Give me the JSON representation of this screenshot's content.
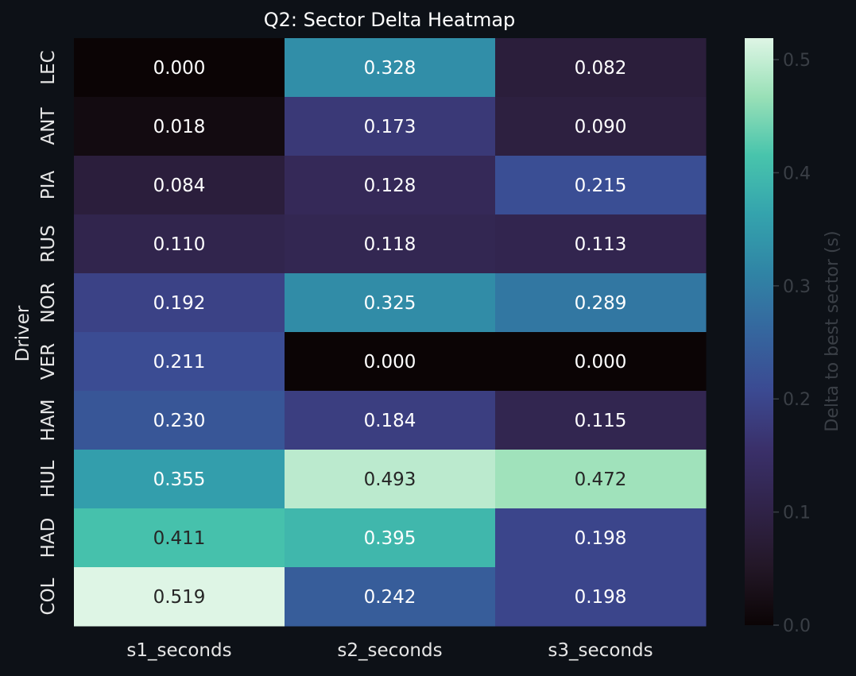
{
  "chart_data": {
    "type": "heatmap",
    "title": "Q2: Sector Delta Heatmap",
    "xlabel": "",
    "ylabel": "Driver",
    "categories_x": [
      "s1_seconds",
      "s2_seconds",
      "s3_seconds"
    ],
    "categories_y": [
      "LEC",
      "ANT",
      "PIA",
      "RUS",
      "NOR",
      "VER",
      "HAM",
      "HUL",
      "HAD",
      "COL"
    ],
    "values": [
      [
        0.0,
        0.328,
        0.082
      ],
      [
        0.018,
        0.173,
        0.09
      ],
      [
        0.084,
        0.128,
        0.215
      ],
      [
        0.11,
        0.118,
        0.113
      ],
      [
        0.192,
        0.325,
        0.289
      ],
      [
        0.211,
        0.0,
        0.0
      ],
      [
        0.23,
        0.184,
        0.115
      ],
      [
        0.355,
        0.493,
        0.472
      ],
      [
        0.411,
        0.395,
        0.198
      ],
      [
        0.519,
        0.242,
        0.198
      ]
    ],
    "value_labels": [
      [
        "0.000",
        "0.328",
        "0.082"
      ],
      [
        "0.018",
        "0.173",
        "0.090"
      ],
      [
        "0.084",
        "0.128",
        "0.215"
      ],
      [
        "0.110",
        "0.118",
        "0.113"
      ],
      [
        "0.192",
        "0.325",
        "0.289"
      ],
      [
        "0.211",
        "0.000",
        "0.000"
      ],
      [
        "0.230",
        "0.184",
        "0.115"
      ],
      [
        "0.355",
        "0.493",
        "0.472"
      ],
      [
        "0.411",
        "0.395",
        "0.198"
      ],
      [
        "0.519",
        "0.242",
        "0.198"
      ]
    ],
    "colorbar": {
      "label": "Delta to best sector (s)",
      "range": [
        0,
        0.519
      ],
      "ticks": [
        0.0,
        0.1,
        0.2,
        0.3,
        0.4,
        0.5
      ],
      "tick_labels": [
        "0.0",
        "0.1",
        "0.2",
        "0.3",
        "0.4",
        "0.5"
      ],
      "colormap": "mako"
    },
    "grid": false,
    "legend": "colorbar-right"
  },
  "colors": {
    "background": "#0d1117",
    "text": "#e6e6e6",
    "muted_text": "#3a3f46"
  }
}
